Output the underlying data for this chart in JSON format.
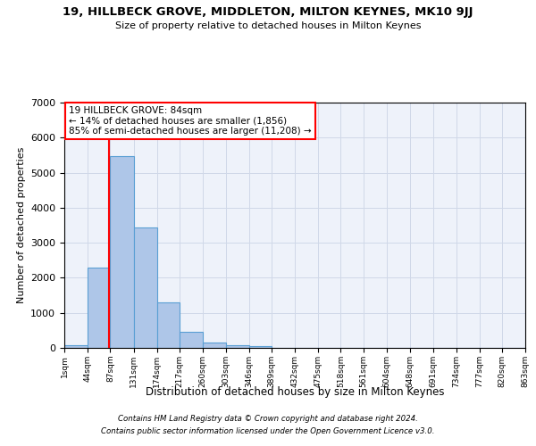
{
  "title": "19, HILLBECK GROVE, MIDDLETON, MILTON KEYNES, MK10 9JJ",
  "subtitle": "Size of property relative to detached houses in Milton Keynes",
  "xlabel": "Distribution of detached houses by size in Milton Keynes",
  "ylabel": "Number of detached properties",
  "footer_line1": "Contains HM Land Registry data © Crown copyright and database right 2024.",
  "footer_line2": "Contains public sector information licensed under the Open Government Licence v3.0.",
  "annotation_line1": "19 HILLBECK GROVE: 84sqm",
  "annotation_line2": "← 14% of detached houses are smaller (1,856)",
  "annotation_line3": "85% of semi-detached houses are larger (11,208) →",
  "bar_values": [
    75,
    2300,
    5480,
    3430,
    1310,
    460,
    155,
    80,
    50,
    0,
    0,
    0,
    0,
    0,
    0,
    0,
    0,
    0,
    0,
    0
  ],
  "bin_edges": [
    1,
    44,
    87,
    131,
    174,
    217,
    260,
    303,
    346,
    389,
    432,
    475,
    518,
    561,
    604,
    648,
    691,
    734,
    777,
    820,
    863
  ],
  "tick_labels": [
    "1sqm",
    "44sqm",
    "87sqm",
    "131sqm",
    "174sqm",
    "217sqm",
    "260sqm",
    "303sqm",
    "346sqm",
    "389sqm",
    "432sqm",
    "475sqm",
    "518sqm",
    "561sqm",
    "604sqm",
    "648sqm",
    "691sqm",
    "734sqm",
    "777sqm",
    "820sqm",
    "863sqm"
  ],
  "bar_color": "#aec6e8",
  "bar_edge_color": "#5a9fd4",
  "grid_color": "#d0d8e8",
  "bg_color": "#eef2fa",
  "red_line_x": 84,
  "annotation_box_color": "white",
  "annotation_box_edge_color": "red",
  "ylim": [
    0,
    7000
  ],
  "yticks": [
    0,
    1000,
    2000,
    3000,
    4000,
    5000,
    6000,
    7000
  ]
}
